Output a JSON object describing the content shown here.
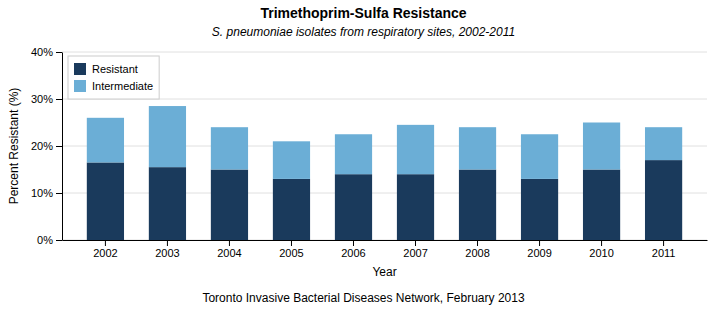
{
  "chart_data": {
    "type": "bar",
    "title": "Trimethoprim-Sulfa Resistance",
    "subtitle": "S. pneumoniae isolates from respiratory sites, 2002-2011",
    "footer": "Toronto Invasive Bacterial Diseases Network, February 2013",
    "xlabel": "Year",
    "ylabel": "Percent Resistant (%)",
    "categories": [
      "2002",
      "2003",
      "2004",
      "2005",
      "2006",
      "2007",
      "2008",
      "2009",
      "2010",
      "2011"
    ],
    "series": [
      {
        "name": "Resistant",
        "color": "#1a3a5c",
        "values": [
          16.5,
          15.5,
          15.0,
          13.0,
          14.0,
          14.0,
          15.0,
          13.0,
          15.0,
          17.0
        ]
      },
      {
        "name": "Intermediate",
        "color": "#6baed6",
        "values": [
          9.5,
          13.0,
          9.0,
          8.0,
          8.5,
          10.5,
          9.0,
          9.5,
          10.0,
          7.0
        ]
      }
    ],
    "stacked": true,
    "ylim": [
      0,
      40
    ],
    "yticks": [
      {
        "value": 0,
        "label": "0%"
      },
      {
        "value": 10,
        "label": "10%"
      },
      {
        "value": 20,
        "label": "20%"
      },
      {
        "value": 30,
        "label": "30%"
      },
      {
        "value": 40,
        "label": "40%"
      }
    ],
    "grid": true,
    "legend": "upper left"
  }
}
